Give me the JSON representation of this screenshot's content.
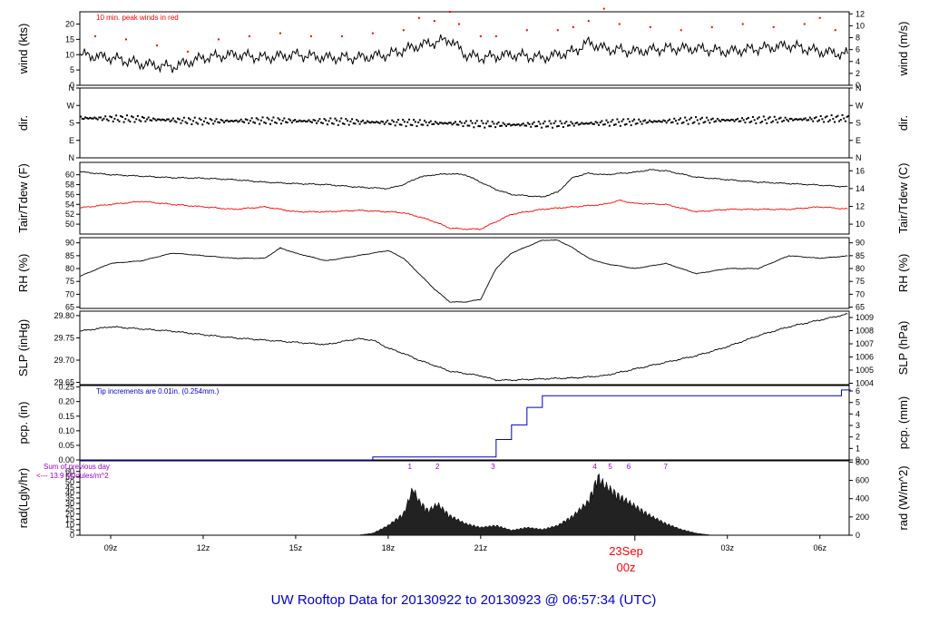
{
  "title": "UW Rooftop Data for 20130922  to  20130923 @ 06:57:34  (UTC)",
  "colors": {
    "black": "#000000",
    "red": "#ff0000",
    "blue": "#0000cc",
    "purple": "#9900cc",
    "title": "#0000cc"
  },
  "x_axis": {
    "ticks": [
      {
        "label": "09z",
        "h": 7
      },
      {
        "label": "12z",
        "h": 10
      },
      {
        "label": "15z",
        "h": 13
      },
      {
        "label": "18z",
        "h": 16
      },
      {
        "label": "21z",
        "h": 19
      },
      {
        "label": "03z",
        "h": 27
      },
      {
        "label": "06z",
        "h": 30
      }
    ],
    "day_label": "23Sep",
    "day_label_sub": "00z",
    "range_hours": [
      6.0,
      30.95
    ]
  },
  "chart_data": [
    {
      "type": "line",
      "ylabel": "wind (kts)",
      "ylabel_right": "wind (m/s)",
      "ylim": [
        0,
        24
      ],
      "yticks": [
        0,
        5,
        10,
        15,
        20
      ],
      "right_ticks": [
        0,
        2,
        4,
        6,
        8,
        10,
        12
      ],
      "annotation": "10 min. peak winds in red",
      "series": [
        {
          "color": "black",
          "x": [
            6,
            7,
            8,
            9,
            10,
            11,
            12,
            13,
            14,
            15,
            16,
            17,
            17.5,
            18,
            18.5,
            19,
            20,
            21,
            22,
            22.5,
            23,
            24,
            25,
            26,
            27,
            28,
            29,
            30,
            31
          ],
          "y": [
            10,
            9,
            7,
            6,
            9,
            10,
            9,
            10,
            9,
            9,
            10,
            13,
            14,
            15,
            10,
            9,
            10,
            9,
            11,
            14,
            12,
            11,
            12,
            12,
            11,
            12,
            13,
            11,
            10
          ]
        },
        {
          "color": "red",
          "style": "points",
          "x": [
            6.5,
            7.5,
            8.5,
            9.5,
            10.5,
            11.5,
            12.5,
            13.5,
            14.5,
            15.5,
            16.5,
            17,
            17.5,
            18,
            18.3,
            19,
            19.5,
            20.5,
            21.5,
            22,
            22.5,
            23,
            23.5,
            24.5,
            25.5,
            26.5,
            27.5,
            28.5,
            29.5,
            30,
            30.5
          ],
          "y": [
            16,
            15,
            13,
            11,
            15,
            16,
            17,
            16,
            16,
            17,
            18,
            22,
            21,
            24,
            20,
            16,
            16,
            18,
            18,
            19,
            21,
            25,
            20,
            19,
            18,
            19,
            20,
            19,
            20,
            22,
            18
          ]
        }
      ]
    },
    {
      "type": "scatter",
      "ylabel": "dir.",
      "ylabel_right": "dir.",
      "ytick_labels": [
        "N",
        "E",
        "S",
        "W",
        "N"
      ],
      "ytick_labels_right": [
        "N",
        "E",
        "S",
        "W",
        "N"
      ],
      "ylim": [
        0,
        360
      ],
      "series": [
        {
          "color": "black",
          "x": [
            6,
            8,
            10,
            12,
            14,
            16,
            18,
            20,
            22,
            24,
            26,
            28,
            30,
            31
          ],
          "y": [
            205,
            200,
            188,
            192,
            188,
            182,
            178,
            170,
            175,
            185,
            193,
            195,
            200,
            205
          ]
        }
      ]
    },
    {
      "type": "line",
      "ylabel": "Tair/Tdew (F)",
      "ylabel_right": "Tair/Tdew (C)",
      "ylim": [
        48,
        62.5
      ],
      "yticks": [
        50,
        52,
        54,
        56,
        58,
        60
      ],
      "right_ticks": [
        10,
        12,
        14,
        16
      ],
      "right_conv": "FtoC",
      "series": [
        {
          "color": "black",
          "x": [
            6,
            7,
            8,
            9,
            10,
            11,
            12,
            13,
            14,
            15,
            16,
            16.5,
            17,
            17.5,
            18,
            18.5,
            19,
            19.5,
            20,
            21,
            21.5,
            22,
            22.5,
            23,
            24,
            24.5,
            25,
            26,
            27,
            28,
            29,
            30,
            31
          ],
          "y": [
            60.6,
            60,
            59.7,
            59.4,
            59.3,
            59,
            58.5,
            58.2,
            58,
            57.5,
            57.2,
            58,
            59.5,
            60,
            60.2,
            60,
            58.5,
            57,
            56,
            55.5,
            56.5,
            59.5,
            60.3,
            60,
            60.5,
            61,
            60.8,
            59.5,
            59,
            58.5,
            58.2,
            57.9,
            57.5
          ]
        },
        {
          "color": "red",
          "x": [
            6,
            7,
            8,
            9,
            10,
            11,
            12,
            13,
            14,
            15,
            16,
            16.5,
            17,
            17.5,
            18,
            18.5,
            19,
            19.5,
            20,
            21,
            22,
            23,
            23.5,
            24,
            25,
            26,
            27,
            28,
            29,
            30,
            31
          ],
          "y": [
            53.3,
            54,
            54.6,
            54,
            53.5,
            53,
            53.5,
            52.5,
            52.5,
            52.8,
            52.5,
            52.3,
            51.5,
            50.5,
            49.2,
            49,
            49,
            50.5,
            52,
            53,
            53.5,
            54,
            54.8,
            54.2,
            54,
            52.5,
            53,
            53,
            53,
            53.5,
            53
          ]
        }
      ]
    },
    {
      "type": "line",
      "ylabel": "RH (%)",
      "ylabel_right": "RH (%)",
      "ylim": [
        64.5,
        92
      ],
      "yticks": [
        65,
        70,
        75,
        80,
        85,
        90
      ],
      "right_ticks": [
        65,
        70,
        75,
        80,
        85,
        90
      ],
      "series": [
        {
          "color": "black",
          "x": [
            6,
            7,
            8,
            9,
            10,
            11,
            12,
            12.5,
            13,
            14,
            15,
            16,
            16.5,
            17,
            17.5,
            18,
            18.5,
            19,
            19.5,
            20,
            21,
            21.5,
            22,
            22.5,
            23,
            24,
            25,
            26,
            27,
            28,
            29,
            30,
            31
          ],
          "y": [
            77,
            82,
            83,
            86,
            85,
            84,
            84,
            88,
            86,
            83,
            85,
            87,
            84,
            78,
            72,
            67,
            67,
            68,
            80,
            86,
            91,
            91,
            88,
            84,
            82,
            80,
            82,
            78,
            80,
            80,
            85,
            84,
            85
          ]
        }
      ]
    },
    {
      "type": "line",
      "ylabel": "SLP (inHg)",
      "ylabel_right": "SLP (hPa)",
      "ylim": [
        29.645,
        29.81
      ],
      "yticks": [
        29.65,
        29.7,
        29.75,
        29.8
      ],
      "ytick_labels": [
        "29.65",
        "29.70",
        "29.75",
        "29.80"
      ],
      "right_ticks": [
        1004,
        1005,
        1006,
        1007,
        1008,
        1009
      ],
      "right_conv": "inHgtohPa",
      "series": [
        {
          "color": "black",
          "x": [
            6,
            7,
            8,
            9,
            10,
            11,
            12,
            13,
            14,
            15,
            15.5,
            16,
            16.5,
            17,
            17.5,
            18,
            18.5,
            19,
            19.5,
            20,
            21,
            22,
            23,
            24,
            25,
            26,
            27,
            28,
            29,
            30,
            31
          ],
          "y": [
            29.765,
            29.775,
            29.77,
            29.765,
            29.757,
            29.75,
            29.745,
            29.74,
            29.735,
            29.748,
            29.745,
            29.727,
            29.715,
            29.7,
            29.688,
            29.675,
            29.67,
            29.665,
            29.655,
            29.655,
            29.658,
            29.66,
            29.665,
            29.68,
            29.695,
            29.71,
            29.73,
            29.755,
            29.775,
            29.79,
            29.805
          ]
        }
      ]
    },
    {
      "type": "line",
      "ylabel": "pcp. (in)",
      "ylabel_right": "pcp. (mm)",
      "ylim": [
        0,
        0.255
      ],
      "yticks": [
        0.0,
        0.05,
        0.1,
        0.15,
        0.2,
        0.25
      ],
      "ytick_labels": [
        "0.00",
        "0.05",
        "0.10",
        "0.15",
        "0.20",
        "0.25"
      ],
      "right_ticks": [
        0,
        1,
        2,
        3,
        4,
        5,
        6
      ],
      "right_conv": "intomm",
      "annotation": "Tip increments are 0.01in. (0.254mm.)",
      "series": [
        {
          "color": "blue",
          "step": true,
          "x": [
            6,
            15.5,
            19,
            19.5,
            20,
            20.5,
            21,
            30.3,
            30.7,
            31
          ],
          "y": [
            0,
            0.01,
            0.01,
            0.07,
            0.12,
            0.18,
            0.22,
            0.22,
            0.24,
            0.24
          ]
        }
      ]
    },
    {
      "type": "area",
      "ylabel": "rad(Lgly/hr)",
      "ylabel_right": "rad (W/m^2)",
      "ylim": [
        0,
        70
      ],
      "yticks": [
        0,
        5,
        10,
        15,
        20,
        25,
        30,
        35,
        40,
        45,
        50,
        55,
        60
      ],
      "right_ticks": [
        0,
        200,
        400,
        600,
        800
      ],
      "right_conv": "lglytowm2",
      "annotation_line1": "Sum of previous day",
      "annotation_line2": "<--- 13.9 MJoules/m^2",
      "markers": [
        {
          "label": "1",
          "h": 16.7
        },
        {
          "label": "2",
          "h": 17.6
        },
        {
          "label": "3",
          "h": 19.4
        },
        {
          "label": "4",
          "h": 22.7
        },
        {
          "label": "5",
          "h": 23.2
        },
        {
          "label": "6",
          "h": 23.8
        },
        {
          "label": "7",
          "h": 25.0
        }
      ],
      "series": [
        {
          "color": "black",
          "x": [
            15,
            15.5,
            16,
            16.5,
            16.8,
            17,
            17.3,
            17.6,
            18,
            18.5,
            19,
            19.5,
            20,
            20.5,
            21,
            21.5,
            22,
            22.5,
            22.8,
            23,
            23.5,
            24,
            24.5,
            25,
            25.5,
            26,
            26.5
          ],
          "y": [
            0,
            2,
            10,
            22,
            48,
            35,
            25,
            32,
            20,
            12,
            8,
            10,
            5,
            8,
            6,
            10,
            20,
            35,
            60,
            52,
            40,
            30,
            20,
            12,
            6,
            2,
            0
          ]
        }
      ]
    }
  ]
}
